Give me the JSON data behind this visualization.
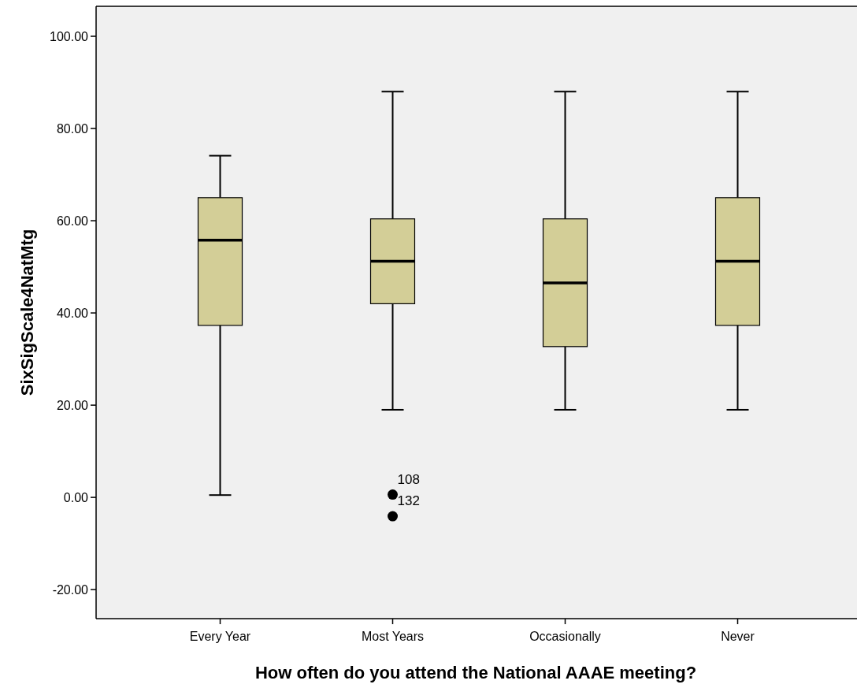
{
  "chart_data": {
    "type": "box",
    "xlabel": "How often do you attend the National AAAE meeting?",
    "ylabel": "SixSigScale4NatMtg",
    "categories": [
      "Every Year",
      "Most Years",
      "Occasionally",
      "Never"
    ],
    "series": [
      {
        "color": "#d3ce97",
        "boxes": [
          {
            "low": 0.5,
            "q1": 37.3,
            "median": 55.8,
            "q3": 65.0,
            "high": 74.1
          },
          {
            "low": 19.0,
            "q1": 42.0,
            "median": 51.2,
            "q3": 60.4,
            "high": 88.0,
            "outliers": [
              0.6,
              -4.1
            ]
          },
          {
            "low": 19.0,
            "q1": 32.7,
            "median": 46.5,
            "q3": 60.4,
            "high": 88.0
          },
          {
            "low": 19.0,
            "q1": 37.3,
            "median": 51.2,
            "q3": 65.0,
            "high": 88.0
          }
        ]
      }
    ],
    "annotations": [
      "108",
      "132"
    ],
    "ylim": [
      -26.3,
      106.5
    ],
    "yticks": [
      {
        "value": -20,
        "label": "-20.00"
      },
      {
        "value": 0,
        "label": "0.00"
      },
      {
        "value": 20,
        "label": "20.00"
      },
      {
        "value": 40,
        "label": "40.00"
      },
      {
        "value": 60,
        "label": "60.00"
      },
      {
        "value": 80,
        "label": "80.00"
      },
      {
        "value": 100,
        "label": "100.00"
      }
    ],
    "grid": false
  }
}
